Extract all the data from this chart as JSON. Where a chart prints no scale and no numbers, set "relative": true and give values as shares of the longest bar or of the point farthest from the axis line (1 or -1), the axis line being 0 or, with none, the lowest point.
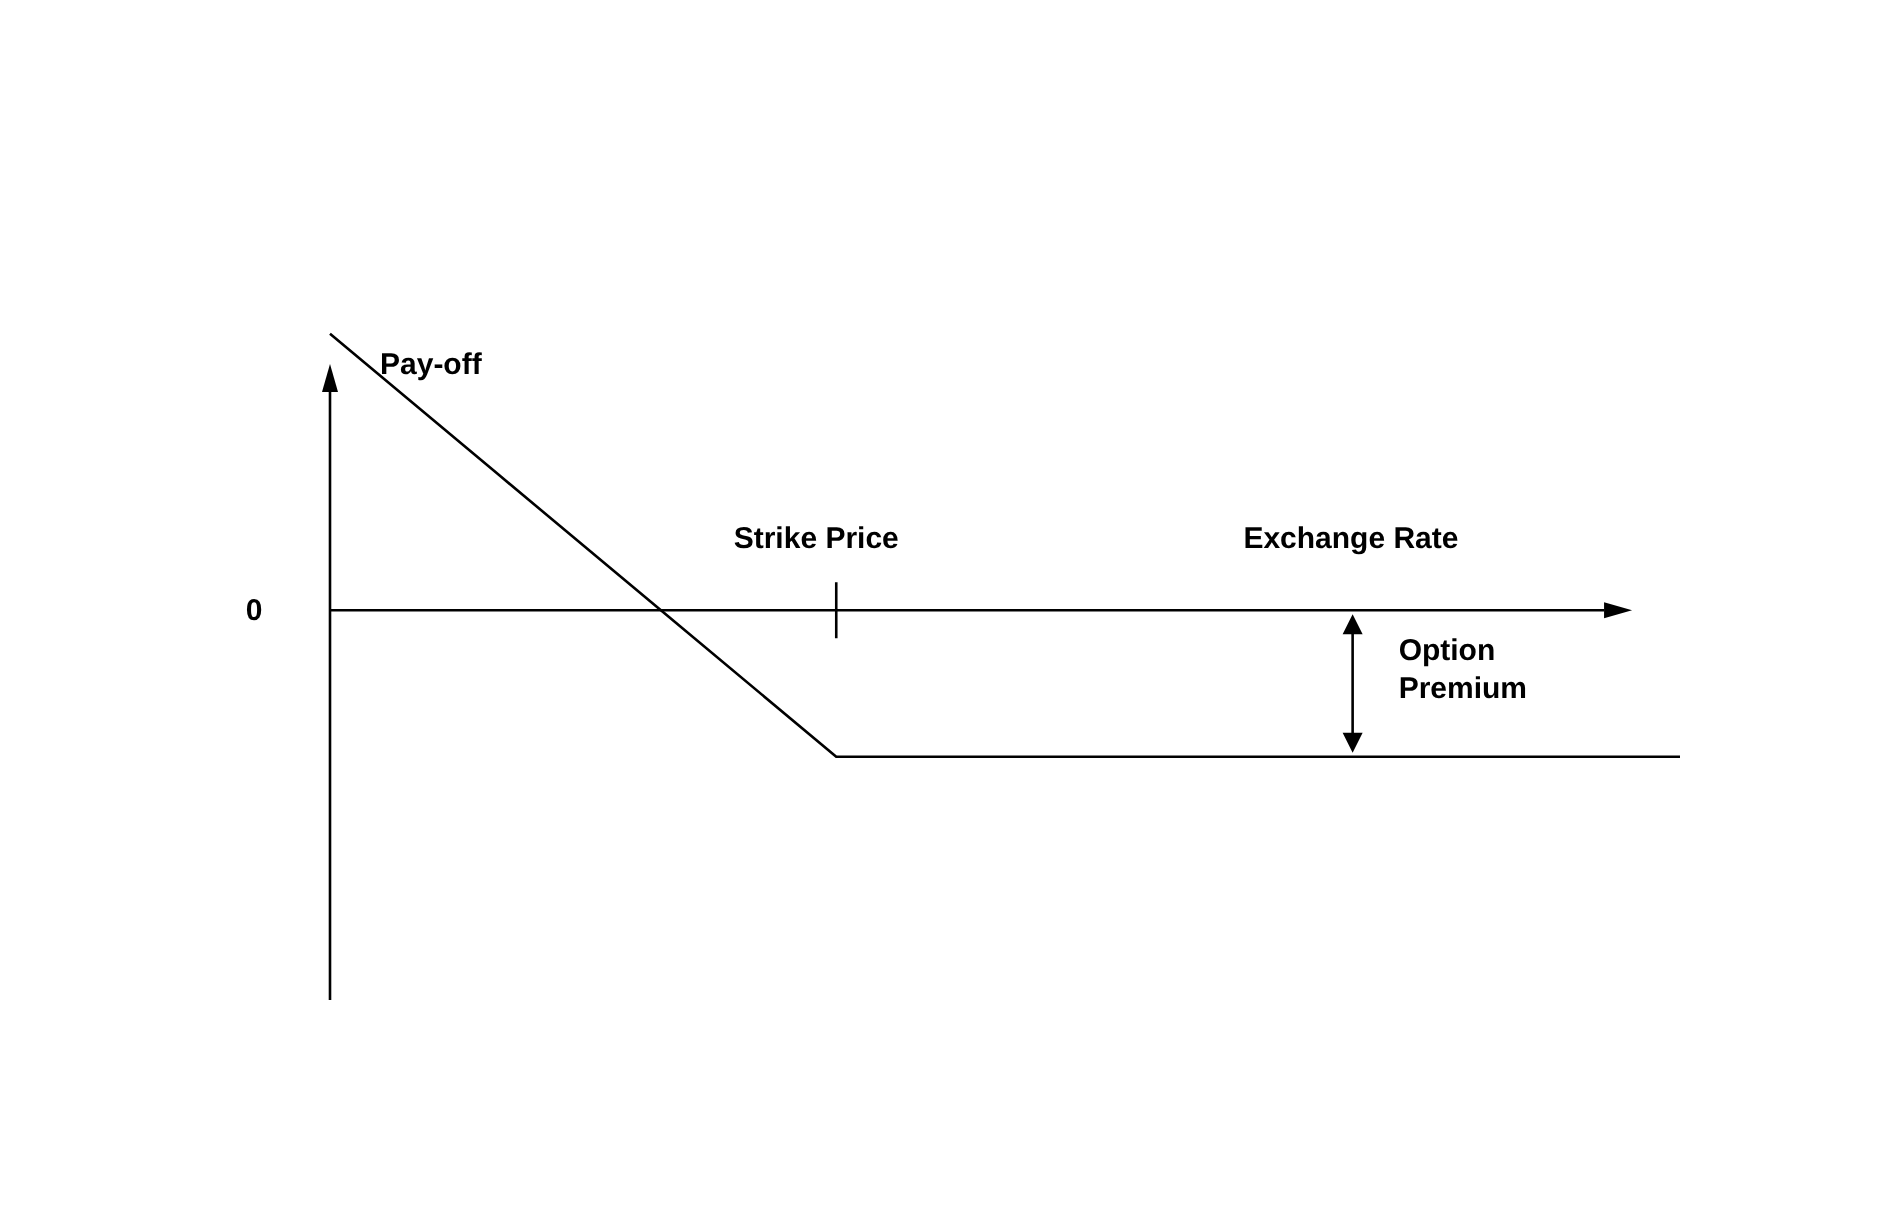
{
  "chart_data": {
    "type": "line",
    "relative": true,
    "ylabel": "Pay-off",
    "xlabel": "Exchange Rate",
    "categories": [
      null,
      null,
      null,
      null,
      null,
      null,
      null,
      null,
      null
    ],
    "series": [
      {
        "color": "#000000",
        "values": [
          1,
          0.49,
          -0.02,
          -0.53,
          -0.53,
          -0.53,
          -0.53,
          -0.53,
          -0.53
        ]
      }
    ],
    "line_style": "solid",
    "annotations": [
      "0",
      "Option Premium",
      "Strike Price"
    ]
  }
}
